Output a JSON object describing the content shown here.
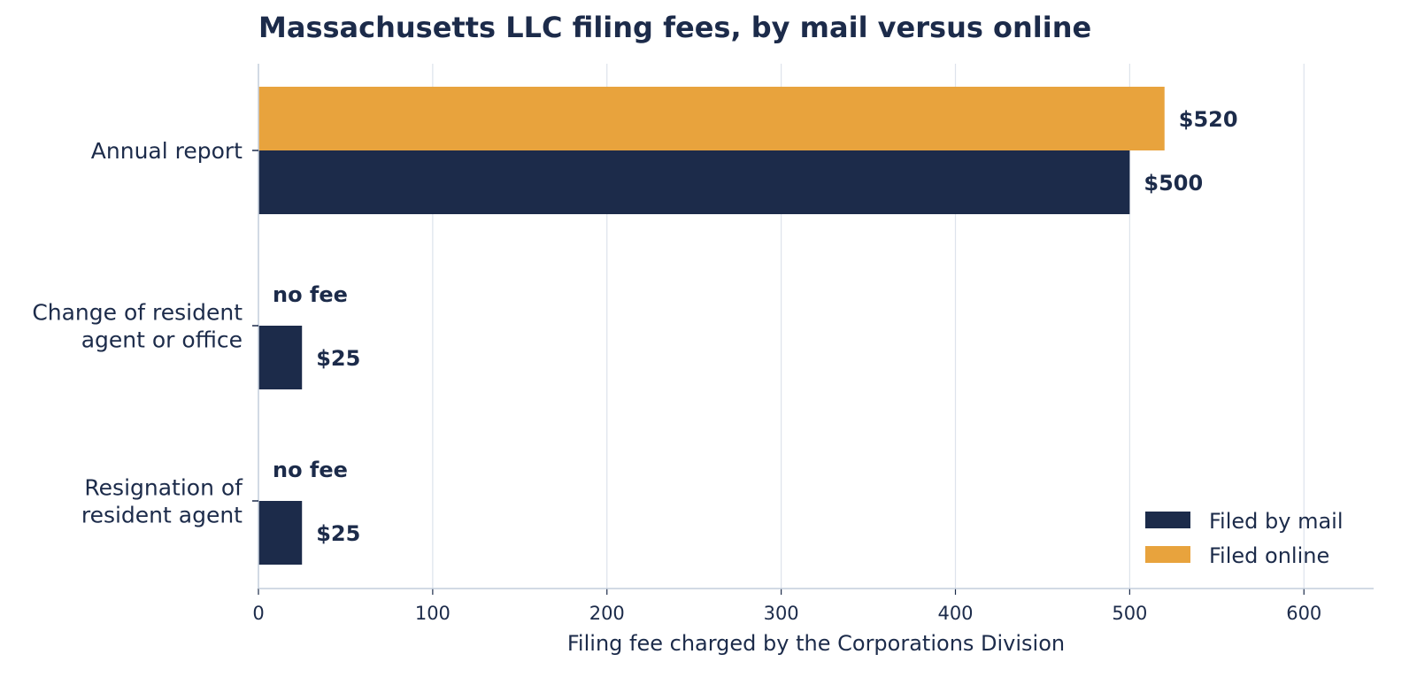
{
  "chart_data": {
    "type": "bar",
    "orientation": "horizontal",
    "title": "Massachusetts LLC filing fees, by mail versus online",
    "xlabel": "Filing fee charged by the Corporations Division",
    "ylabel": "",
    "xlim": [
      0,
      640
    ],
    "xticks": [
      0,
      100,
      200,
      300,
      400,
      500,
      600
    ],
    "grid": true,
    "legend_position": "bottom-right",
    "categories": [
      [
        "Annual report"
      ],
      [
        "Change of resident",
        "agent or office"
      ],
      [
        "Resignation of",
        "resident agent"
      ]
    ],
    "series": [
      {
        "name": "Filed by mail",
        "color": "#1c2b4a",
        "values": [
          500,
          25,
          25
        ],
        "labels": [
          "$500",
          "$25",
          "$25"
        ]
      },
      {
        "name": "Filed online",
        "color": "#e8a33d",
        "values": [
          520,
          0,
          0
        ],
        "labels": [
          "$520",
          "no fee",
          "no fee"
        ]
      }
    ]
  }
}
